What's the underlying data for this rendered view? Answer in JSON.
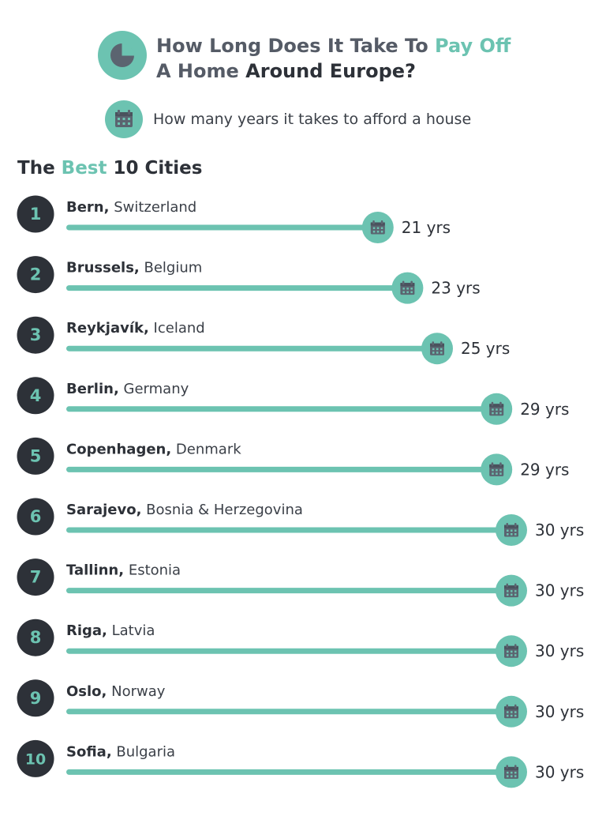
{
  "header": {
    "title_part1": "How Long Does It Take To ",
    "title_accent": "Pay Off",
    "title_part2": "A Home ",
    "title_dark": "Around Europe?",
    "legend_text": "How many years it takes to afford a house",
    "pie_icon": "pie-chart-icon",
    "legend_icon": "calendar-icon"
  },
  "subtitle": {
    "prefix": "The ",
    "accent": "Best",
    "suffix": " 10 Cities"
  },
  "colors": {
    "accent": "#6cc3b1",
    "dark": "#2d3138",
    "icon": "#5b6470"
  },
  "chart_data": {
    "type": "bar",
    "title": "How Long Does It Take To Pay Off A Home Around Europe?",
    "subtitle": "The Best 10 Cities",
    "legend": "How many years it takes to afford a house",
    "unit_suffix": " yrs",
    "ranks": [
      "1",
      "2",
      "3",
      "4",
      "5",
      "6",
      "7",
      "8",
      "9",
      "10"
    ],
    "cities": [
      "Bern",
      "Brussels",
      "Reykjavík",
      "Berlin",
      "Copenhagen",
      "Sarajevo",
      "Tallinn",
      "Riga",
      "Oslo",
      "Sofia"
    ],
    "countries": [
      "Switzerland",
      "Belgium",
      "Iceland",
      "Germany",
      "Denmark",
      "Bosnia & Herzegovina",
      "Estonia",
      "Latvia",
      "Norway",
      "Bulgaria"
    ],
    "values": [
      21,
      23,
      25,
      29,
      29,
      30,
      30,
      30,
      30,
      30
    ],
    "orientation": "horizontal"
  }
}
